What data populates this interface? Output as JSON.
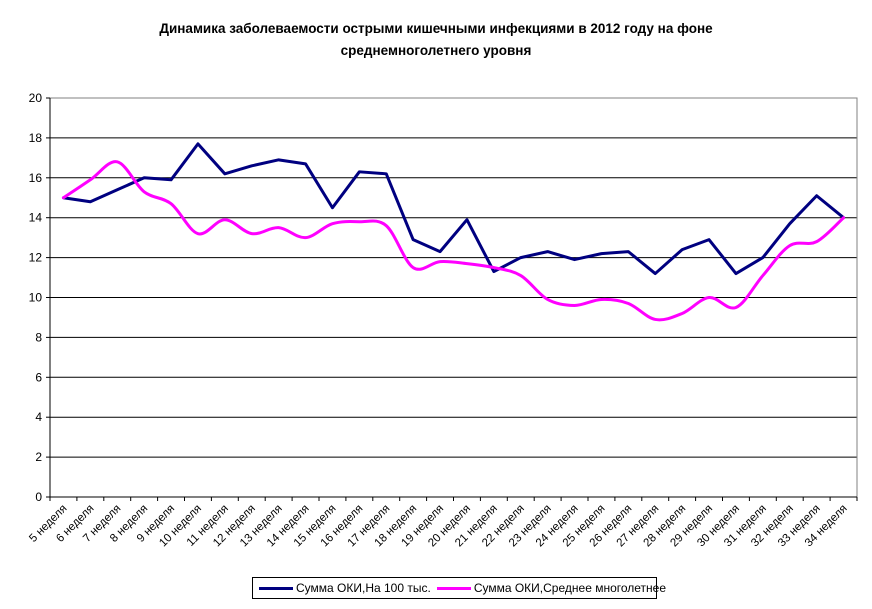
{
  "chart_data": {
    "type": "line",
    "title_line1": "Динамика заболеваемости острыми кишечными инфекциями в 2012 году на фоне",
    "title_line2": "среднемноголетнего уровня",
    "categories": [
      "5 неделя",
      "6 неделя",
      "7 неделя",
      "8 неделя",
      "9 неделя",
      "10 неделя",
      "11 неделя",
      "12 неделя",
      "13 неделя",
      "14 неделя",
      "15 неделя",
      "16 неделя",
      "17 неделя",
      "18 неделя",
      "19 неделя",
      "20 неделя",
      "21 неделя",
      "22 неделя",
      "23 неделя",
      "24 неделя",
      "25 неделя",
      "26 неделя",
      "27 неделя",
      "28 неделя",
      "29 неделя",
      "30 неделя",
      "31 неделя",
      "32 неделя",
      "33 неделя",
      "34 неделя"
    ],
    "yticks": [
      "0",
      "2",
      "4",
      "6",
      "8",
      "10",
      "12",
      "14",
      "16",
      "18",
      "20"
    ],
    "ylim": [
      0,
      20
    ],
    "grid": true,
    "legend_position": "bottom",
    "series": [
      {
        "name": "Сумма ОКИ,На 100 тыс.",
        "color": "#000080",
        "smooth": false,
        "values": [
          15.0,
          14.8,
          15.4,
          16.0,
          15.9,
          17.7,
          16.2,
          16.6,
          16.9,
          16.7,
          14.5,
          16.3,
          16.2,
          12.9,
          12.3,
          13.9,
          11.3,
          12.0,
          12.3,
          11.9,
          12.2,
          12.3,
          11.2,
          12.4,
          12.9,
          11.2,
          12.0,
          13.7,
          15.1,
          14.0
        ]
      },
      {
        "name": "Сумма ОКИ,Среднее многолетнее",
        "color": "#ff00ff",
        "smooth": true,
        "values": [
          15.0,
          15.9,
          16.8,
          15.3,
          14.7,
          13.2,
          13.9,
          13.2,
          13.5,
          13.0,
          13.7,
          13.8,
          13.6,
          11.5,
          11.8,
          11.7,
          11.5,
          11.1,
          9.9,
          9.6,
          9.9,
          9.7,
          8.9,
          9.2,
          10.0,
          9.5,
          11.1,
          12.6,
          12.8,
          14.0
        ]
      }
    ]
  }
}
